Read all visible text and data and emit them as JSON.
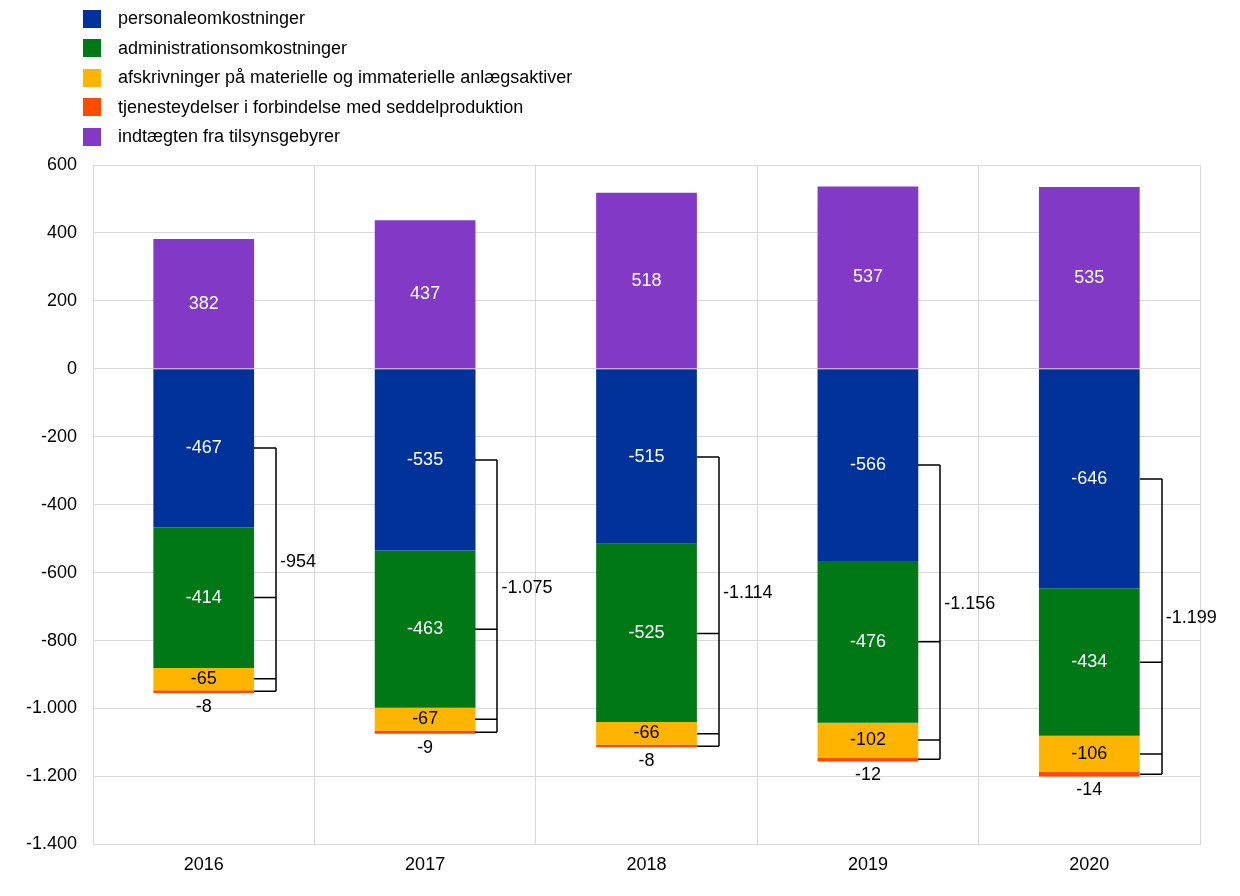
{
  "chart_data": {
    "type": "bar",
    "stacked": true,
    "categories": [
      "2016",
      "2017",
      "2018",
      "2019",
      "2020"
    ],
    "series": [
      {
        "name": "personaleomkostninger",
        "color": "#003299",
        "values": [
          -467,
          -535,
          -515,
          -566,
          -646
        ]
      },
      {
        "name": "administrationsomkostninger",
        "color": "#007816",
        "values": [
          -414,
          -463,
          -525,
          -476,
          -434
        ]
      },
      {
        "name": "afskrivninger på materielle og immaterielle anlægsaktiver",
        "color": "#ffb400",
        "values": [
          -65,
          -67,
          -66,
          -102,
          -106
        ]
      },
      {
        "name": "tjenesteydelser i forbindelse med seddelproduktion",
        "color": "#ff4b00",
        "values": [
          -8,
          -9,
          -8,
          -12,
          -14
        ]
      },
      {
        "name": "indtægten fra tilsynsgebyrer",
        "color": "#8139c6",
        "values": [
          382,
          437,
          518,
          537,
          535
        ]
      }
    ],
    "annotations": [
      "-954",
      "-1.075",
      "-1.114",
      "-1.156",
      "-1.199"
    ],
    "ylim": [
      -1400,
      600
    ],
    "yticks": [
      {
        "value": -1400,
        "label": "-1.400"
      },
      {
        "value": -1200,
        "label": "-1.200"
      },
      {
        "value": -1000,
        "label": "-1.000"
      },
      -800,
      -600,
      -400,
      -200,
      0,
      200,
      400,
      600
    ],
    "data_labels": true,
    "grid": true,
    "legend": "top left"
  }
}
